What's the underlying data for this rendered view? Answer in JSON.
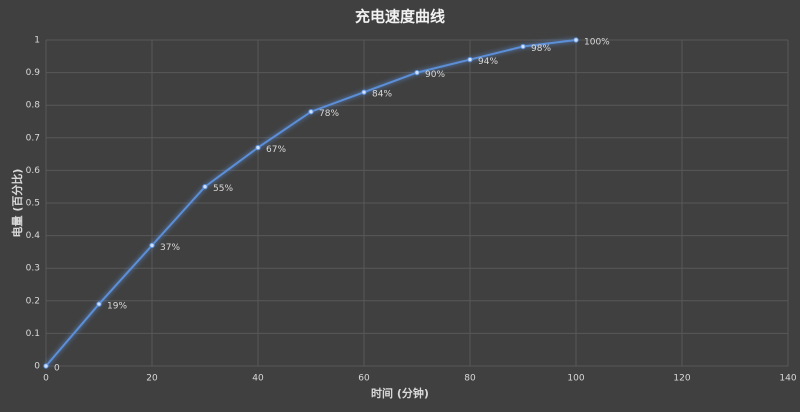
{
  "chart_data": {
    "type": "line",
    "title": "充电速度曲线",
    "x_label": "时间 (分钟)",
    "y_label": "电量 (百分比)",
    "x": [
      0,
      10,
      20,
      30,
      40,
      50,
      60,
      70,
      80,
      90,
      100
    ],
    "series": [
      {
        "name": "电量",
        "color": "#5b8fd8",
        "values": [
          0,
          0.19,
          0.37,
          0.55,
          0.67,
          0.78,
          0.84,
          0.9,
          0.94,
          0.98,
          1
        ],
        "value_labels": [
          "0",
          "19%",
          "37%",
          "55%",
          "67%",
          "78%",
          "84%",
          "90%",
          "94%",
          "98%",
          "100%"
        ]
      }
    ],
    "xlim": [
      0,
      140
    ],
    "xticks": [
      0,
      20,
      40,
      60,
      80,
      100,
      120,
      140
    ],
    "ylim": [
      0,
      1
    ],
    "yticks": [
      0,
      0.1,
      0.2,
      0.3,
      0.4,
      0.5,
      0.6,
      0.7,
      0.8,
      0.9,
      1
    ],
    "grid": true
  }
}
